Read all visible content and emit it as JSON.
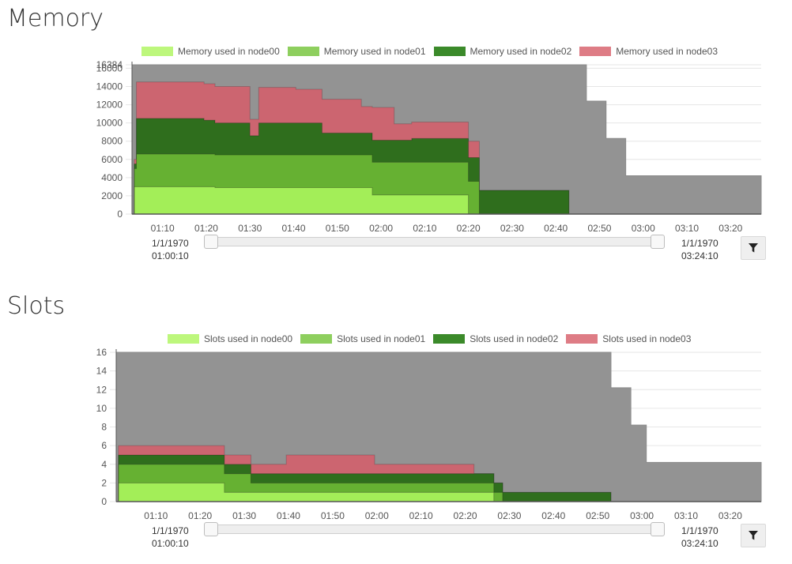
{
  "memory": {
    "title": "Memory",
    "legend": [
      "Memory used in node00",
      "Memory used in node01",
      "Memory used in node02",
      "Memory used in node03"
    ],
    "range_start": {
      "date": "1/1/1970",
      "time": "01:00:10"
    },
    "range_end": {
      "date": "1/1/1970",
      "time": "03:24:10"
    }
  },
  "slots": {
    "title": "Slots",
    "legend": [
      "Slots used in node00",
      "Slots used in node01",
      "Slots used in node02",
      "Slots used in node03"
    ],
    "range_start": {
      "date": "1/1/1970",
      "time": "01:00:10"
    },
    "range_end": {
      "date": "1/1/1970",
      "time": "03:24:10"
    }
  },
  "colors": {
    "node00": "#a3ee58",
    "node01": "#66b132",
    "node02": "#2f6e1d",
    "node03": "#cc6570",
    "capacity": "#939393",
    "legend_node00": "#bdf77c",
    "legend_node01": "#8ecf5e",
    "legend_node02": "#3b8a2a",
    "legend_node03": "#de7c85"
  },
  "icons": {
    "filter": "filter-icon"
  },
  "chart_data": [
    {
      "type": "area",
      "stacked": true,
      "step": true,
      "title": "Memory",
      "x_unit": "minutes since 01:00",
      "xlim": [
        3,
        147
      ],
      "x_ticks": [
        "01:10",
        "01:20",
        "01:30",
        "01:40",
        "01:50",
        "02:00",
        "02:10",
        "02:20",
        "02:30",
        "02:40",
        "02:50",
        "03:00",
        "03:10",
        "03:20"
      ],
      "y_ticks": [
        0,
        2000,
        4000,
        6000,
        8000,
        10000,
        12000,
        14000,
        16000,
        16384
      ],
      "ylim": [
        0,
        16384
      ],
      "capacity": {
        "x": [
          3,
          107,
          111.5,
          116,
          147
        ],
        "values": [
          16384,
          12400,
          8300,
          4200,
          4200
        ]
      },
      "x": [
        3,
        3.5,
        4,
        16.5,
        19.5,
        22,
        30,
        32,
        34,
        40.5,
        46.5,
        55.5,
        58,
        63,
        65,
        67,
        73,
        77,
        80,
        82.5,
        101.5,
        103,
        147
      ],
      "series": [
        {
          "name": "Memory used in node00",
          "values": [
            0,
            3000,
            3000,
            3000,
            3000,
            2900,
            2900,
            2900,
            2900,
            2900,
            2900,
            2900,
            2100,
            2100,
            2100,
            2100,
            2100,
            2100,
            0,
            0,
            0,
            0,
            0
          ]
        },
        {
          "name": "Memory used in node01",
          "values": [
            0,
            2000,
            3600,
            3600,
            3600,
            3600,
            3600,
            3600,
            3600,
            3600,
            3600,
            3600,
            3600,
            3600,
            3600,
            3600,
            3600,
            3600,
            3600,
            0,
            0,
            0,
            0
          ]
        },
        {
          "name": "Memory used in node02",
          "values": [
            0,
            500,
            3900,
            3900,
            3700,
            3500,
            2100,
            3500,
            3500,
            3500,
            2400,
            2400,
            2400,
            2400,
            2400,
            2600,
            2600,
            2600,
            2600,
            2600,
            2600,
            0,
            0
          ]
        },
        {
          "name": "Memory used in node03",
          "values": [
            0,
            500,
            4000,
            4000,
            4000,
            4000,
            1800,
            3900,
            3900,
            3700,
            3700,
            2900,
            3600,
            1800,
            1800,
            1800,
            1800,
            1800,
            1800,
            0,
            0,
            0,
            0
          ]
        }
      ]
    },
    {
      "type": "area",
      "stacked": true,
      "step": true,
      "title": "Slots",
      "x_unit": "minutes since 01:00",
      "xlim": [
        1,
        147
      ],
      "x_ticks": [
        "01:10",
        "01:20",
        "01:30",
        "01:40",
        "01:50",
        "02:00",
        "02:10",
        "02:20",
        "02:30",
        "02:40",
        "02:50",
        "03:00",
        "03:10",
        "03:20"
      ],
      "y_ticks": [
        0,
        2,
        4,
        6,
        8,
        10,
        12,
        14,
        16
      ],
      "ylim": [
        0,
        16
      ],
      "capacity": {
        "x": [
          1,
          113,
          117.5,
          121,
          147
        ],
        "values": [
          16,
          12.2,
          8.2,
          4.2,
          4.2
        ]
      },
      "x": [
        1,
        1.5,
        25.5,
        31.5,
        39.5,
        59.5,
        82,
        86.5,
        88.5,
        113,
        147
      ],
      "series": [
        {
          "name": "Slots used in node00",
          "values": [
            0,
            2,
            1,
            1,
            1,
            1,
            1,
            0,
            0,
            0,
            0
          ]
        },
        {
          "name": "Slots used in node01",
          "values": [
            0,
            2,
            2,
            1,
            1,
            1,
            1,
            1,
            0,
            0,
            0
          ]
        },
        {
          "name": "Slots used in node02",
          "values": [
            0,
            1,
            1,
            1,
            1,
            1,
            1,
            1,
            1,
            0,
            0
          ]
        },
        {
          "name": "Slots used in node03",
          "values": [
            0,
            1,
            1,
            1,
            2,
            1,
            0,
            0,
            0,
            0,
            0
          ]
        }
      ]
    }
  ]
}
